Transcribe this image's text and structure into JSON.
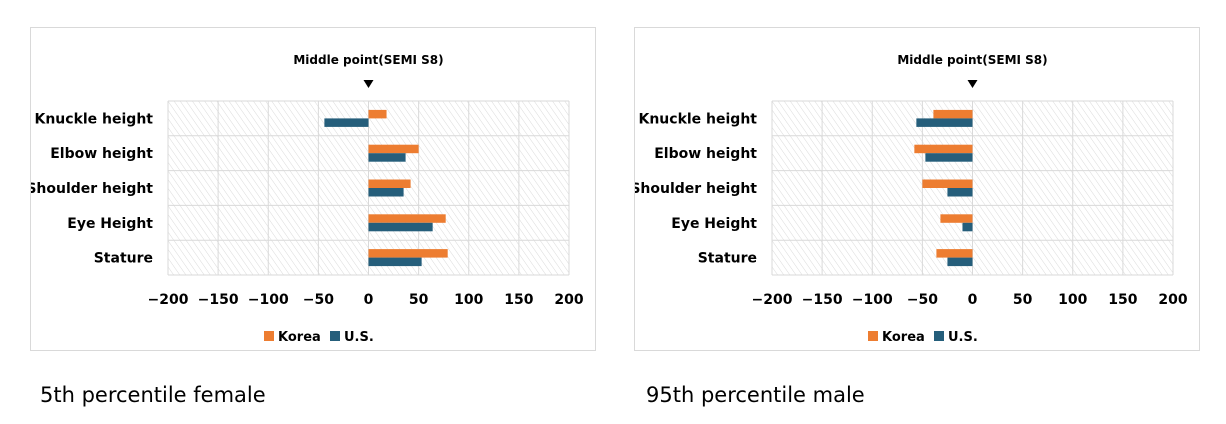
{
  "captions": [
    "5th percentile female",
    "95th percentile male"
  ],
  "colors": {
    "korea": "#ED7D31",
    "us": "#255E7B",
    "grid": "#D9D9D9",
    "hatch": "#DADADA"
  },
  "chart_data": [
    {
      "type": "bar",
      "orientation": "horizontal",
      "annotation": "Middle point(SEMI S8)",
      "categories": [
        "Knuckle height",
        "Elbow height",
        "Shoulder height",
        "Eye Height",
        "Stature"
      ],
      "series": [
        {
          "name": "Korea",
          "values": [
            18,
            50,
            42,
            77,
            79
          ]
        },
        {
          "name": "U.S.",
          "values": [
            -44,
            37,
            35,
            64,
            53
          ]
        }
      ],
      "xlim": [
        -200,
        200
      ],
      "xticks": [
        -200,
        -150,
        -100,
        -50,
        0,
        50,
        100,
        150,
        200
      ],
      "grid": true,
      "legend": "bottom"
    },
    {
      "type": "bar",
      "orientation": "horizontal",
      "annotation": "Middle point(SEMI S8)",
      "categories": [
        "Knuckle height",
        "Elbow height",
        "Shoulder height",
        "Eye Height",
        "Stature"
      ],
      "series": [
        {
          "name": "Korea",
          "values": [
            -39,
            -58,
            -50,
            -32,
            -36
          ]
        },
        {
          "name": "U.S.",
          "values": [
            -56,
            -47,
            -25,
            -10,
            -25
          ]
        }
      ],
      "xlim": [
        -200,
        200
      ],
      "xticks": [
        -200,
        -150,
        -100,
        -50,
        0,
        50,
        100,
        150,
        200
      ],
      "grid": true,
      "legend": "bottom"
    }
  ]
}
